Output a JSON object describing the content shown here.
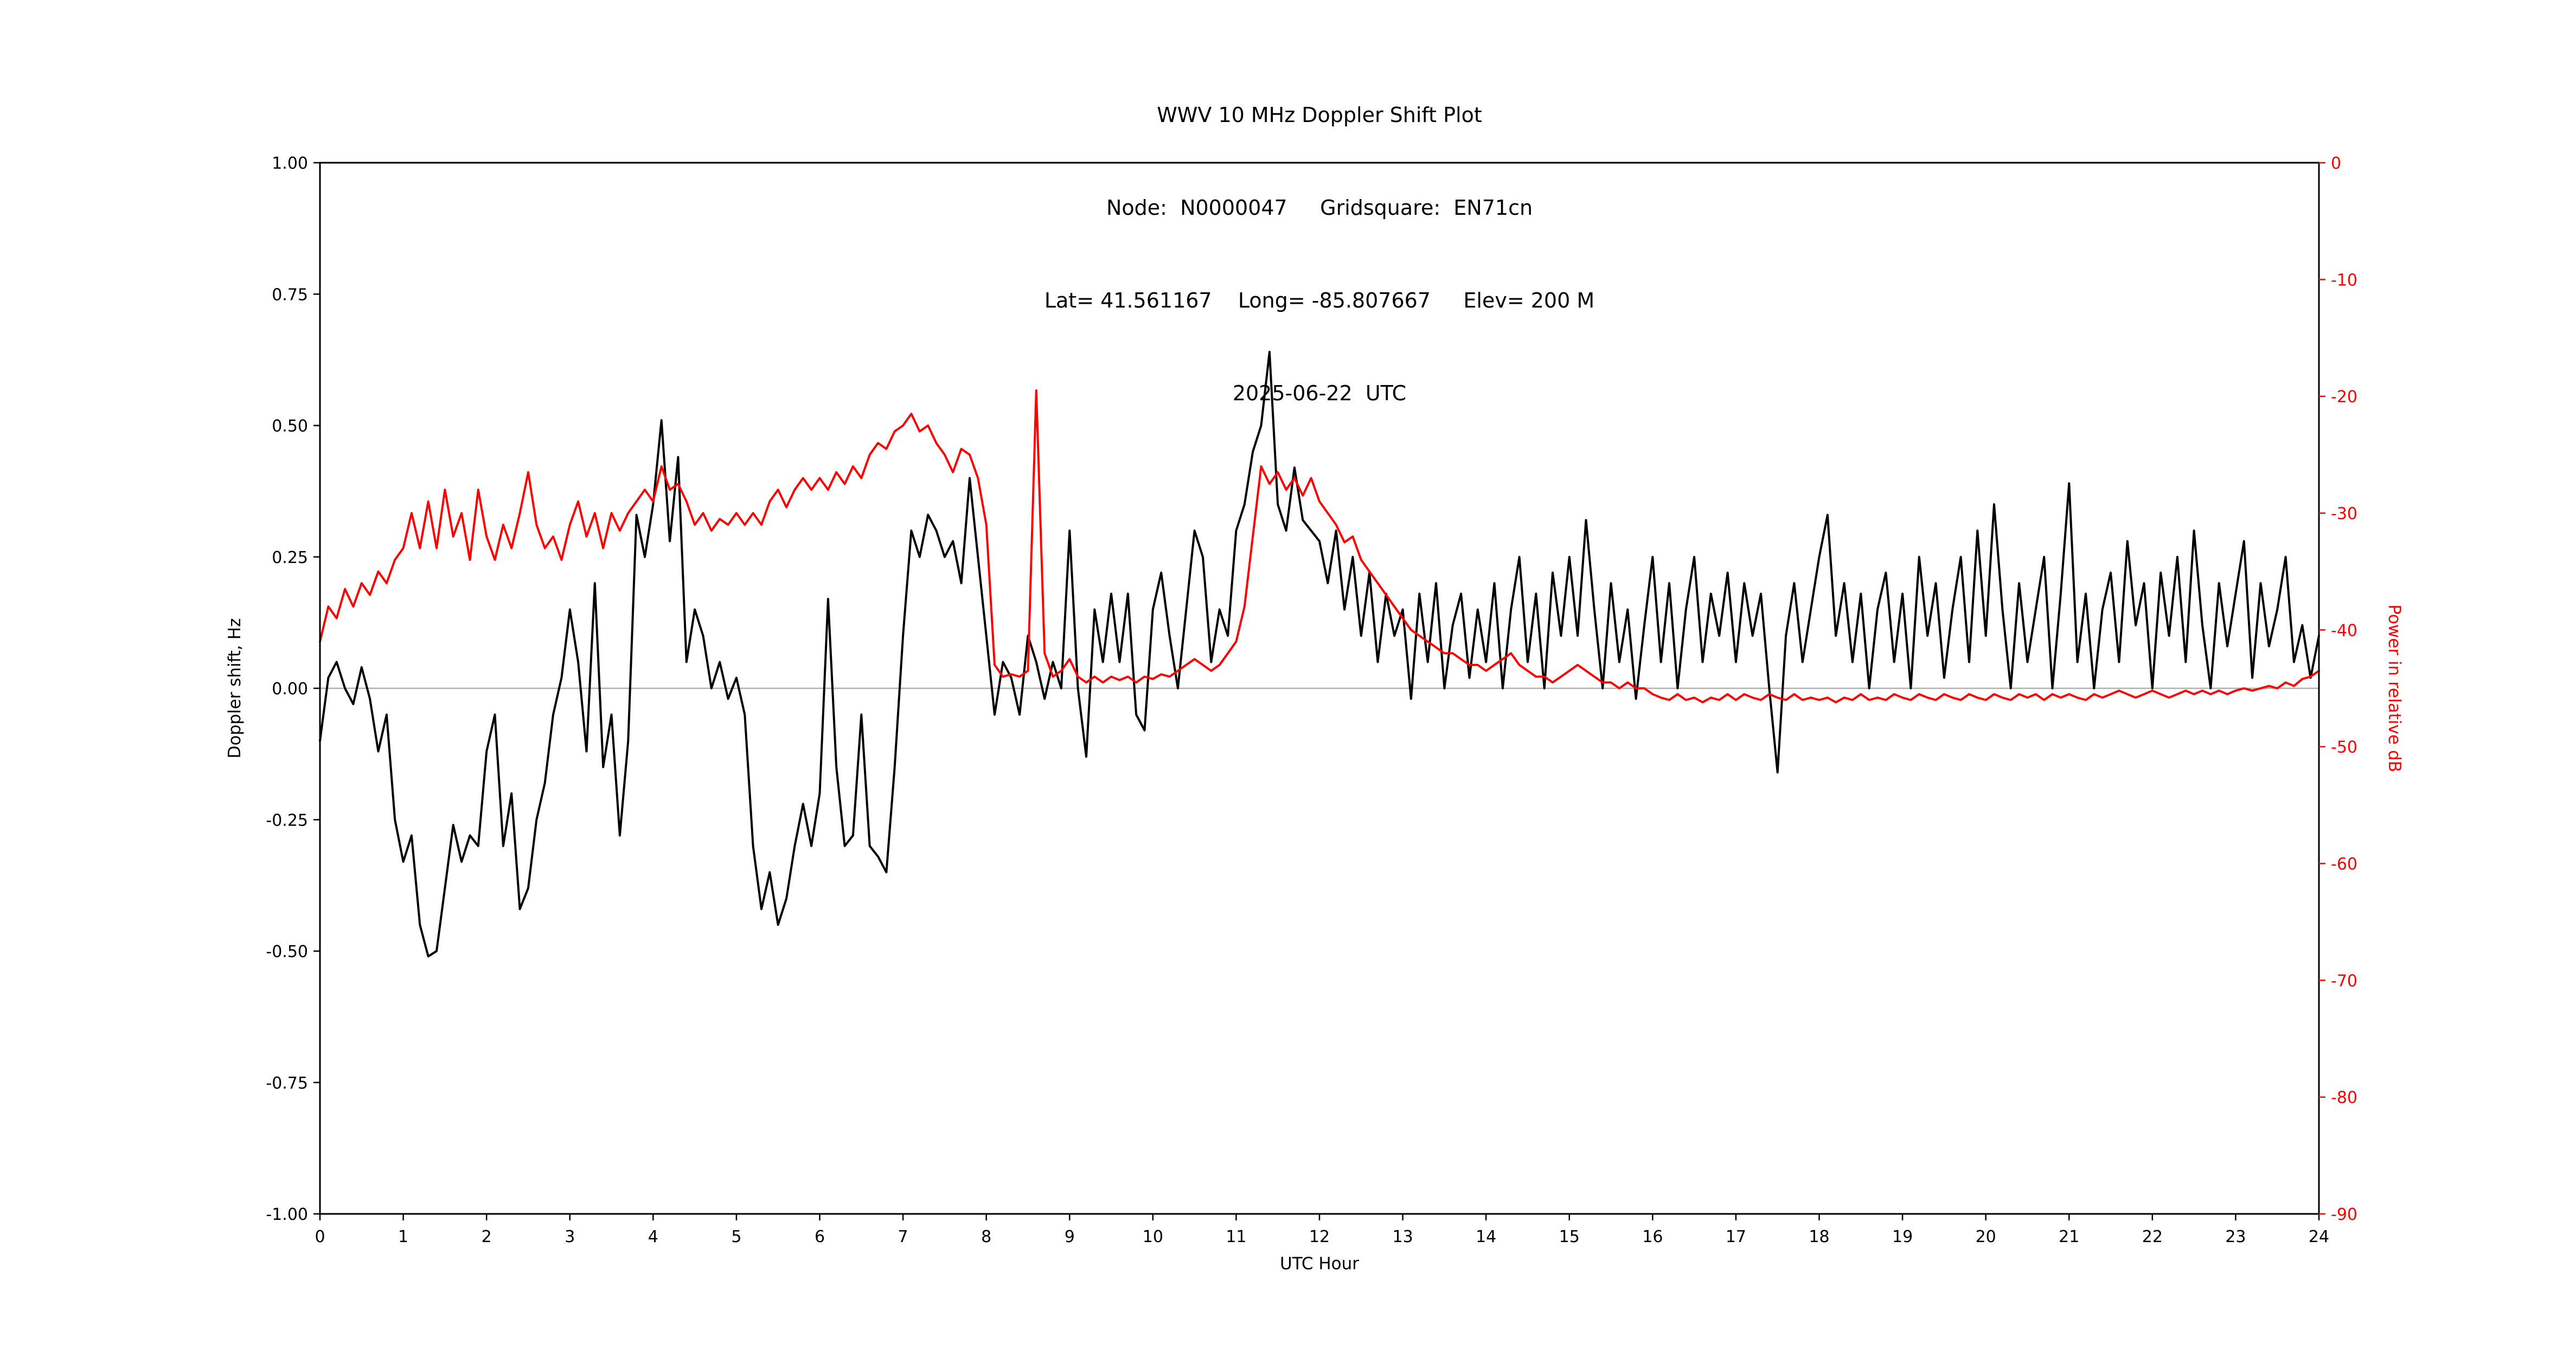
{
  "chart_data": {
    "type": "line",
    "title_lines": [
      "WWV 10 MHz Doppler Shift Plot",
      "Node:  N0000047     Gridsquare:  EN71cn",
      "Lat= 41.561167    Long= -85.807667     Elev= 200 M",
      "2025-06-22  UTC"
    ],
    "xlabel": "UTC Hour",
    "ylabel_left": "Doppler shift, Hz",
    "ylabel_right": "Power in relative dB",
    "grid": "off",
    "legend": "none",
    "x_axis": {
      "min": 0,
      "max": 24,
      "tick_labels": [
        "0",
        "1",
        "2",
        "3",
        "4",
        "5",
        "6",
        "7",
        "8",
        "9",
        "10",
        "11",
        "12",
        "13",
        "14",
        "15",
        "16",
        "17",
        "18",
        "19",
        "20",
        "21",
        "22",
        "23",
        "24"
      ]
    },
    "y_axis_left": {
      "min": -1.0,
      "max": 1.0,
      "tick_values": [
        1.0,
        0.75,
        0.5,
        0.25,
        0.0,
        -0.25,
        -0.5,
        -0.75,
        -1.0
      ],
      "tick_labels": [
        "1.00",
        "0.75",
        "0.50",
        "0.25",
        "0.00",
        "-0.25",
        "-0.50",
        "-0.75",
        "-1.00"
      ]
    },
    "y_axis_right": {
      "min": -90,
      "max": 0,
      "tick_values": [
        0,
        -10,
        -20,
        -30,
        -40,
        -50,
        -60,
        -70,
        -80,
        -90
      ],
      "tick_labels": [
        "0",
        "-10",
        "-20",
        "-30",
        "-40",
        "-50",
        "-60",
        "-70",
        "-80",
        "-90"
      ]
    },
    "zero_line": {
      "value": 0.0,
      "color": "#b0b0b0"
    },
    "colors": {
      "doppler": "#000000",
      "power": "#ff0000"
    },
    "series": [
      {
        "name": "Doppler shift, Hz",
        "axis": "left",
        "color": "#000000",
        "x0": 0,
        "dx": 0.1,
        "values": [
          -0.1,
          0.02,
          0.05,
          0.0,
          -0.03,
          0.04,
          -0.02,
          -0.12,
          -0.05,
          -0.25,
          -0.33,
          -0.28,
          -0.45,
          -0.51,
          -0.5,
          -0.38,
          -0.26,
          -0.33,
          -0.28,
          -0.3,
          -0.12,
          -0.05,
          -0.3,
          -0.2,
          -0.42,
          -0.38,
          -0.25,
          -0.18,
          -0.05,
          0.02,
          0.15,
          0.05,
          -0.12,
          0.2,
          -0.15,
          -0.05,
          -0.28,
          -0.1,
          0.33,
          0.25,
          0.35,
          0.51,
          0.28,
          0.44,
          0.05,
          0.15,
          0.1,
          0.0,
          0.05,
          -0.02,
          0.02,
          -0.05,
          -0.3,
          -0.42,
          -0.35,
          -0.45,
          -0.4,
          -0.3,
          -0.22,
          -0.3,
          -0.2,
          0.17,
          -0.15,
          -0.3,
          -0.28,
          -0.05,
          -0.3,
          -0.32,
          -0.35,
          -0.15,
          0.1,
          0.3,
          0.25,
          0.33,
          0.3,
          0.25,
          0.28,
          0.2,
          0.4,
          0.25,
          0.1,
          -0.05,
          0.05,
          0.02,
          -0.05,
          0.1,
          0.05,
          -0.02,
          0.05,
          0.0,
          0.3,
          0.0,
          -0.13,
          0.15,
          0.05,
          0.18,
          0.05,
          0.18,
          -0.05,
          -0.08,
          0.15,
          0.22,
          0.1,
          0.0,
          0.15,
          0.3,
          0.25,
          0.05,
          0.15,
          0.1,
          0.3,
          0.35,
          0.45,
          0.5,
          0.64,
          0.35,
          0.3,
          0.42,
          0.32,
          0.3,
          0.28,
          0.2,
          0.3,
          0.15,
          0.25,
          0.1,
          0.22,
          0.05,
          0.18,
          0.1,
          0.15,
          -0.02,
          0.18,
          0.05,
          0.2,
          0.0,
          0.12,
          0.18,
          0.02,
          0.15,
          0.05,
          0.2,
          0.0,
          0.15,
          0.25,
          0.05,
          0.18,
          0.0,
          0.22,
          0.1,
          0.25,
          0.1,
          0.32,
          0.15,
          0.0,
          0.2,
          0.05,
          0.15,
          -0.02,
          0.12,
          0.25,
          0.05,
          0.2,
          0.0,
          0.15,
          0.25,
          0.05,
          0.18,
          0.1,
          0.22,
          0.05,
          0.2,
          0.1,
          0.18,
          0.0,
          -0.16,
          0.1,
          0.2,
          0.05,
          0.15,
          0.25,
          0.33,
          0.1,
          0.2,
          0.05,
          0.18,
          0.0,
          0.15,
          0.22,
          0.05,
          0.18,
          0.0,
          0.25,
          0.1,
          0.2,
          0.02,
          0.15,
          0.25,
          0.05,
          0.3,
          0.1,
          0.35,
          0.15,
          0.0,
          0.2,
          0.05,
          0.15,
          0.25,
          0.0,
          0.18,
          0.39,
          0.05,
          0.18,
          0.0,
          0.15,
          0.22,
          0.05,
          0.28,
          0.12,
          0.2,
          0.0,
          0.22,
          0.1,
          0.25,
          0.05,
          0.3,
          0.12,
          0.0,
          0.2,
          0.08,
          0.18,
          0.28,
          0.02,
          0.2,
          0.08,
          0.15,
          0.25,
          0.05,
          0.12,
          0.02,
          0.1
        ]
      },
      {
        "name": "Power in relative dB",
        "axis": "right",
        "color": "#ff0000",
        "x0": 0,
        "dx": 0.1,
        "values": [
          -41,
          -38,
          -39,
          -36.5,
          -38,
          -36,
          -37,
          -35,
          -36,
          -34,
          -33,
          -30,
          -33,
          -29,
          -33,
          -28,
          -32,
          -30,
          -34,
          -28,
          -32,
          -34,
          -31,
          -33,
          -30,
          -26.5,
          -31,
          -33,
          -32,
          -34,
          -31,
          -29,
          -32,
          -30,
          -33,
          -30,
          -31.5,
          -30,
          -29,
          -28,
          -29,
          -26,
          -28,
          -27.5,
          -29,
          -31,
          -30,
          -31.5,
          -30.5,
          -31,
          -30,
          -31,
          -30,
          -31,
          -29,
          -28,
          -29.5,
          -28,
          -27,
          -28,
          -27,
          -28,
          -26.5,
          -27.5,
          -26,
          -27,
          -25,
          -24,
          -24.5,
          -23,
          -22.5,
          -21.5,
          -23,
          -22.5,
          -24,
          -25,
          -26.5,
          -24.5,
          -25,
          -27,
          -31,
          -43,
          -44,
          -43.8,
          -44,
          -43.5,
          -19.5,
          -42,
          -44,
          -43.5,
          -42.5,
          -44,
          -44.5,
          -44,
          -44.5,
          -44,
          -44.3,
          -44,
          -44.5,
          -44,
          -44.2,
          -43.8,
          -44,
          -43.5,
          -43,
          -42.5,
          -43,
          -43.5,
          -43,
          -42,
          -41,
          -38,
          -32,
          -26,
          -27.5,
          -26.5,
          -28,
          -27,
          -28.5,
          -27,
          -29,
          -30,
          -31,
          -32.5,
          -32,
          -34,
          -35,
          -36,
          -37,
          -38,
          -39,
          -40,
          -40.5,
          -41,
          -41.5,
          -42,
          -42,
          -42.5,
          -43,
          -43,
          -43.5,
          -43,
          -42.5,
          -42,
          -43,
          -43.5,
          -44,
          -44,
          -44.5,
          -44,
          -43.5,
          -43,
          -43.5,
          -44,
          -44.5,
          -44.5,
          -45,
          -44.5,
          -45,
          -45,
          -45.5,
          -45.8,
          -46,
          -45.5,
          -46,
          -45.8,
          -46.2,
          -45.8,
          -46,
          -45.5,
          -46,
          -45.5,
          -45.8,
          -46,
          -45.5,
          -45.8,
          -46,
          -45.5,
          -46,
          -45.8,
          -46,
          -45.8,
          -46.2,
          -45.8,
          -46,
          -45.5,
          -46,
          -45.8,
          -46,
          -45.5,
          -45.8,
          -46,
          -45.5,
          -45.8,
          -46,
          -45.5,
          -45.8,
          -46,
          -45.5,
          -45.8,
          -46,
          -45.5,
          -45.8,
          -46,
          -45.5,
          -45.8,
          -45.5,
          -46,
          -45.5,
          -45.8,
          -45.5,
          -45.8,
          -46,
          -45.5,
          -45.8,
          -45.5,
          -45.2,
          -45.5,
          -45.8,
          -45.5,
          -45.2,
          -45.5,
          -45.8,
          -45.5,
          -45.2,
          -45.5,
          -45.2,
          -45.5,
          -45.2,
          -45.5,
          -45.2,
          -45,
          -45.2,
          -45,
          -44.8,
          -45,
          -44.5,
          -44.8,
          -44.2,
          -44,
          -43.5
        ]
      }
    ]
  }
}
